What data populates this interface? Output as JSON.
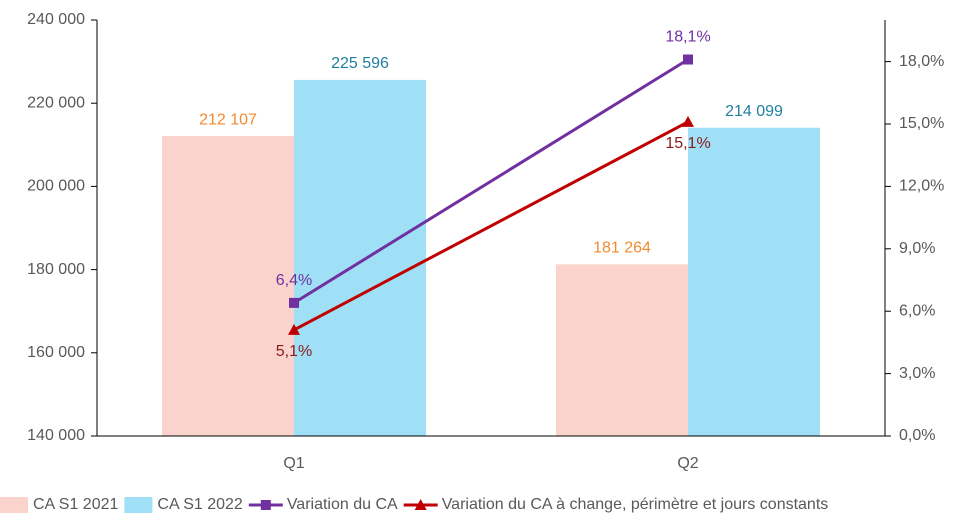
{
  "chart_data": {
    "type": "bar",
    "categories": [
      "Q1",
      "Q2"
    ],
    "ylim": [
      140000,
      240000
    ],
    "yticks": [
      {
        "value": 140000,
        "label": "140 000"
      },
      {
        "value": 160000,
        "label": "160 000"
      },
      {
        "value": 180000,
        "label": "180 000"
      },
      {
        "value": 200000,
        "label": "200 000"
      },
      {
        "value": 220000,
        "label": "220 000"
      },
      {
        "value": 240000,
        "label": "240 000"
      }
    ],
    "y2lim": [
      0,
      20
    ],
    "y2ticks": [
      {
        "value": 0,
        "label": "0,0%"
      },
      {
        "value": 3,
        "label": "3,0%"
      },
      {
        "value": 6,
        "label": "6,0%"
      },
      {
        "value": 9,
        "label": "9,0%"
      },
      {
        "value": 12,
        "label": "12,0%"
      },
      {
        "value": 15,
        "label": "15,0%"
      },
      {
        "value": 18,
        "label": "18,0%"
      }
    ],
    "legend": "bottom",
    "series": [
      {
        "name": "CA S1 2021",
        "type": "bar",
        "color": "#fad4cc",
        "label_color": "#f28a30",
        "values": [
          212107,
          181264
        ],
        "value_labels": [
          "212 107",
          "181 264"
        ]
      },
      {
        "name": "CA S1 2022",
        "type": "bar",
        "color": "#a0e0f7",
        "label_color": "#1f7f9f",
        "values": [
          225596,
          214099
        ],
        "value_labels": [
          "225 596",
          "214 099"
        ]
      },
      {
        "name": "Variation du CA",
        "type": "line",
        "axis": "y2",
        "marker": "square",
        "color": "#7030a0",
        "label_color": "#7030a0",
        "values": [
          6.4,
          18.1
        ],
        "value_labels": [
          "6,4%",
          "18,1%"
        ]
      },
      {
        "name": "Variation du CA à change, périmètre et jours constants",
        "type": "line",
        "axis": "y2",
        "marker": "triangle",
        "color": "#c00000",
        "label_color": "#8b1a1a",
        "values": [
          5.1,
          15.1
        ],
        "value_labels": [
          "5,1%",
          "15,1%"
        ]
      }
    ]
  }
}
